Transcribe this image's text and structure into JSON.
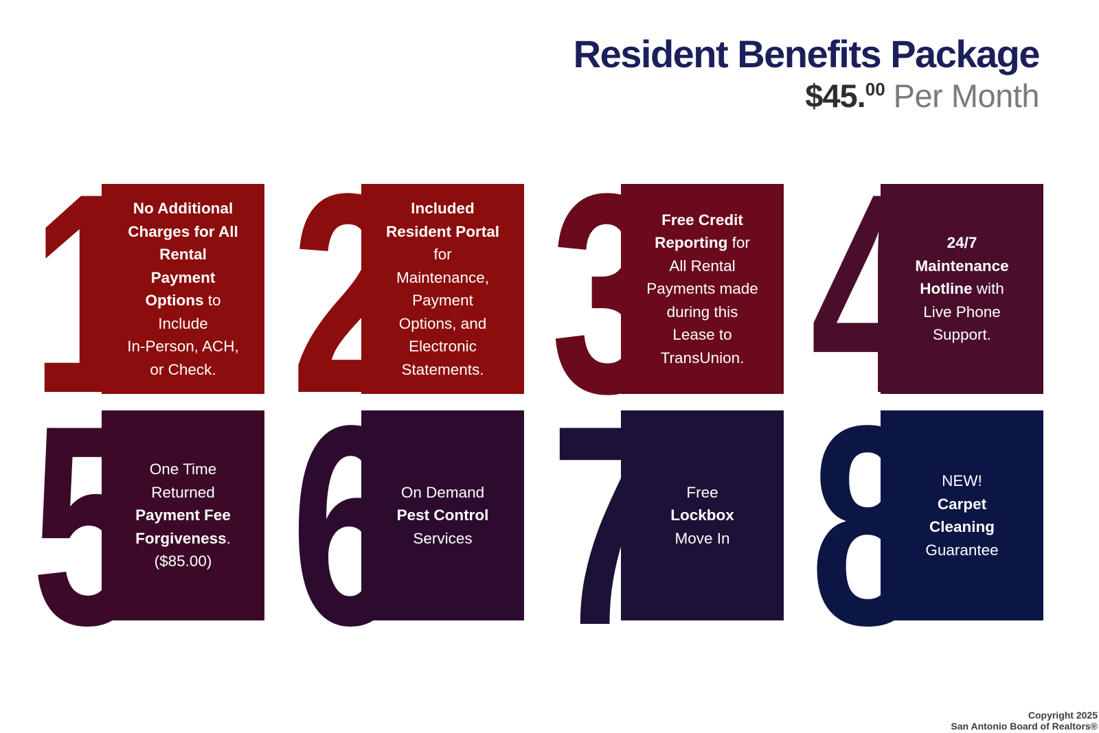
{
  "header": {
    "title": "Resident Benefits Package",
    "price_amount": "$45.",
    "price_cents": "00",
    "price_suffix": "Per Month"
  },
  "theme": {
    "background": "#FFFFFF",
    "title_color": "#1B1F5B",
    "price_color": "#2E2E2E",
    "price_suffix_color": "#7A7A7A",
    "card_text_color": "#FFFFFF"
  },
  "cards": [
    {
      "number": "1",
      "color": "#8B0D0D",
      "segments": [
        {
          "bold": true,
          "text": "No Additional\nCharges for All\nRental\nPayment\nOptions"
        },
        {
          "bold": false,
          "text": " to\nInclude\nIn-Person, ACH,\nor Check."
        }
      ]
    },
    {
      "number": "2",
      "color": "#8B0D0D",
      "segments": [
        {
          "bold": true,
          "text": "Included\nResident Portal"
        },
        {
          "bold": false,
          "text": "\nfor\nMaintenance,\nPayment\nOptions, and\nElectronic\nStatements."
        }
      ]
    },
    {
      "number": "3",
      "color": "#6A0A1C",
      "segments": [
        {
          "bold": true,
          "text": "Free Credit\nReporting"
        },
        {
          "bold": false,
          "text": " for\nAll Rental\nPayments made\nduring this\nLease to\nTransUnion."
        }
      ]
    },
    {
      "number": "4",
      "color": "#4A0E2B",
      "segments": [
        {
          "bold": true,
          "text": "24/7\nMaintenance\nHotline"
        },
        {
          "bold": false,
          "text": " with\nLive Phone\nSupport."
        }
      ]
    },
    {
      "number": "5",
      "color": "#3C0A28",
      "segments": [
        {
          "bold": false,
          "text": "One Time\nReturned\n"
        },
        {
          "bold": true,
          "text": "Payment Fee\nForgiveness"
        },
        {
          "bold": false,
          "text": ".\n($85.00)"
        }
      ]
    },
    {
      "number": "6",
      "color": "#2D0B2F",
      "segments": [
        {
          "bold": false,
          "text": "On Demand\n"
        },
        {
          "bold": true,
          "text": "Pest Control"
        },
        {
          "bold": false,
          "text": "\nServices"
        }
      ]
    },
    {
      "number": "7",
      "color": "#1C1136",
      "segments": [
        {
          "bold": false,
          "text": "Free\n"
        },
        {
          "bold": true,
          "text": "Lockbox"
        },
        {
          "bold": false,
          "text": "\nMove In"
        }
      ]
    },
    {
      "number": "8",
      "color": "#0B1644",
      "segments": [
        {
          "bold": false,
          "text": "NEW!\n"
        },
        {
          "bold": true,
          "text": "Carpet\nCleaning"
        },
        {
          "bold": false,
          "text": "\nGuarantee"
        }
      ]
    }
  ],
  "footer": {
    "line1": "Copyright 2025",
    "line2": "San Antonio Board of Realtors®"
  }
}
